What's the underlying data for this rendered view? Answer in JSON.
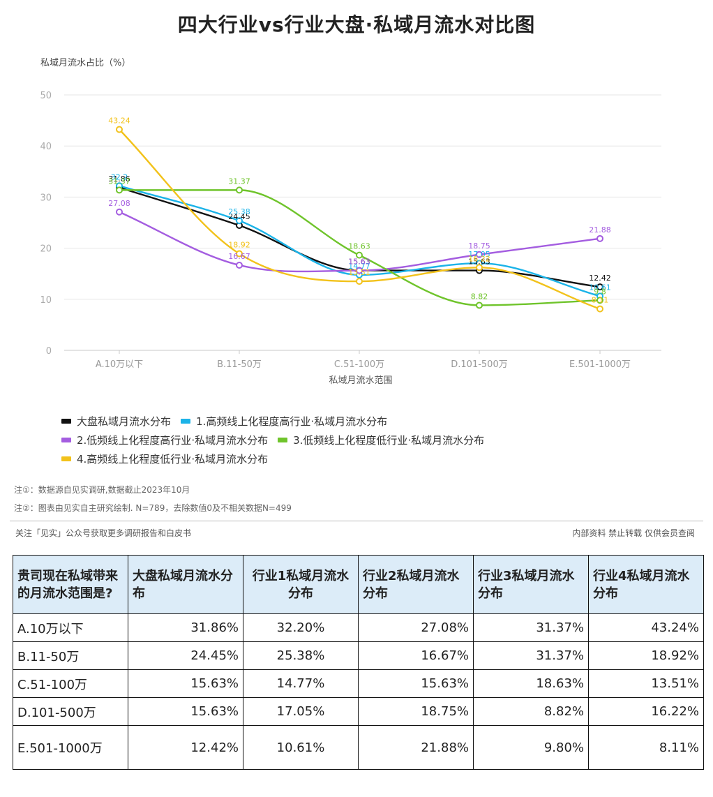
{
  "title": "四大行业vs行业大盘·私域月流水对比图",
  "chart_data": {
    "type": "line",
    "ylabel": "私域月流水占比（%）",
    "xlabel": "私域月流水范围",
    "ylim": [
      0,
      50
    ],
    "yticks": [
      0,
      10,
      20,
      30,
      40,
      50
    ],
    "grid": true,
    "legend_position": "bottom",
    "categories": [
      "A.10万以下",
      "B.11-50万",
      "C.51-100万",
      "D.101-500万",
      "E.501-1000万"
    ],
    "series": [
      {
        "name": "大盘私域月流水分布",
        "color": "#111111",
        "values": [
          31.86,
          24.45,
          15.63,
          15.63,
          12.42
        ],
        "labels": [
          "31.86",
          "24.45",
          "15.63",
          "15.63",
          "12.42"
        ]
      },
      {
        "name": "1.高频线上化程度高行业·私域月流水分布",
        "color": "#1bb3e8",
        "values": [
          32.2,
          25.38,
          14.77,
          17.05,
          10.61
        ],
        "labels": [
          "32.2",
          "25.38",
          "14.77",
          "17.05",
          "10.61"
        ]
      },
      {
        "name": "2.低频线上化程度高行业·私域月流水分布",
        "color": "#a45de0",
        "values": [
          27.08,
          16.67,
          15.63,
          18.75,
          21.88
        ],
        "labels": [
          "27.08",
          "16.67",
          "15.63",
          "18.75",
          "21.88"
        ]
      },
      {
        "name": "3.低频线上化程度低行业·私域月流水分布",
        "color": "#6fc42b",
        "values": [
          31.37,
          31.37,
          18.63,
          8.82,
          9.8
        ],
        "labels": [
          "31.37",
          "31.37",
          "18.63",
          "8.82",
          "9.8"
        ]
      },
      {
        "name": "4.高频线上化程度低行业·私域月流水分布",
        "color": "#f2c21b",
        "values": [
          43.24,
          18.92,
          13.51,
          16.22,
          8.11
        ],
        "labels": [
          "43.24",
          "18.92",
          "13.51",
          "16.22",
          "8.11"
        ]
      }
    ]
  },
  "notes": {
    "note1": "注①：数据源自见实调研,数据截止2023年10月",
    "note2": "注②：图表由见实自主研究绘制. N=789，去除数值0及不相关数据N=499"
  },
  "footer": {
    "left": "关注「见实」公众号获取更多调研报告和白皮书",
    "right": "内部资料 禁止转载 仅供会员查阅"
  },
  "table": {
    "headers": [
      "贵司现在私域带来的月流水范围是?",
      "大盘私域月流水分布",
      "行业1私域月流水分布",
      "行业2私域月流水分布",
      "行业3私域月流水分布",
      "行业4私域月流水分布"
    ],
    "rows": [
      [
        "A.10万以下",
        "31.86%",
        "32.20%",
        "27.08%",
        "31.37%",
        "43.24%"
      ],
      [
        "B.11-50万",
        "24.45%",
        "25.38%",
        "16.67%",
        "31.37%",
        "18.92%"
      ],
      [
        "C.51-100万",
        "15.63%",
        "14.77%",
        "15.63%",
        "18.63%",
        "13.51%"
      ],
      [
        "D.101-500万",
        "15.63%",
        "17.05%",
        "18.75%",
        "8.82%",
        "16.22%"
      ],
      [
        "E.501-1000万",
        "12.42%",
        "10.61%",
        "21.88%",
        "9.80%",
        "8.11%"
      ]
    ]
  }
}
